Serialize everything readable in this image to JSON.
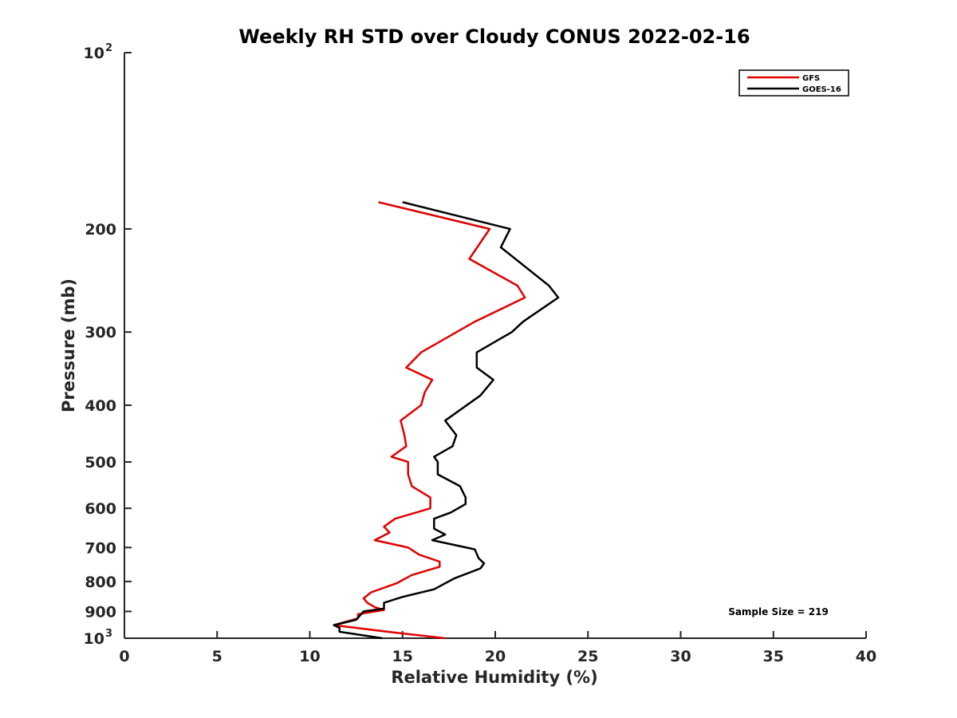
{
  "chart_data": {
    "type": "line",
    "title": "Weekly RH STD over Cloudy CONUS 2022-02-16",
    "xlabel": "Relative Humidity (%)",
    "ylabel": "Pressure (mb)",
    "xlim": [
      0,
      40
    ],
    "ylim": [
      100,
      1000
    ],
    "y_scale": "log",
    "y_inverted": true,
    "grid": false,
    "legend_position": "top-right",
    "x_ticks": [
      "0",
      "5",
      "10",
      "15",
      "20",
      "25",
      "30",
      "35",
      "40"
    ],
    "y_ticks": [
      {
        "value": 100,
        "label": "10",
        "sup": "2"
      },
      {
        "value": 200,
        "label": "200",
        "sup": ""
      },
      {
        "value": 300,
        "label": "300",
        "sup": ""
      },
      {
        "value": 400,
        "label": "400",
        "sup": ""
      },
      {
        "value": 500,
        "label": "500",
        "sup": ""
      },
      {
        "value": 600,
        "label": "600",
        "sup": ""
      },
      {
        "value": 700,
        "label": "700",
        "sup": ""
      },
      {
        "value": 800,
        "label": "800",
        "sup": ""
      },
      {
        "value": 900,
        "label": "900",
        "sup": ""
      },
      {
        "value": 1000,
        "label": "10",
        "sup": "3"
      }
    ],
    "annotation": "Sample Size = 219",
    "series": [
      {
        "name": "GFS",
        "color": "#e00000",
        "points": [
          [
            13.7,
            180
          ],
          [
            19.7,
            200
          ],
          [
            18.6,
            225
          ],
          [
            21.2,
            250
          ],
          [
            21.6,
            262
          ],
          [
            18.9,
            288
          ],
          [
            16.0,
            325
          ],
          [
            15.2,
            345
          ],
          [
            16.6,
            362
          ],
          [
            16.2,
            380
          ],
          [
            16.0,
            400
          ],
          [
            14.9,
            425
          ],
          [
            15.1,
            450
          ],
          [
            15.2,
            470
          ],
          [
            14.4,
            490
          ],
          [
            15.3,
            500
          ],
          [
            15.3,
            525
          ],
          [
            15.5,
            550
          ],
          [
            16.5,
            575
          ],
          [
            16.5,
            600
          ],
          [
            14.6,
            625
          ],
          [
            14.0,
            645
          ],
          [
            14.3,
            660
          ],
          [
            13.5,
            680
          ],
          [
            15.3,
            700
          ],
          [
            15.9,
            720
          ],
          [
            17.0,
            740
          ],
          [
            17.0,
            755
          ],
          [
            15.5,
            780
          ],
          [
            14.7,
            805
          ],
          [
            13.3,
            835
          ],
          [
            12.9,
            855
          ],
          [
            13.1,
            870
          ],
          [
            13.5,
            885
          ],
          [
            14.0,
            895
          ],
          [
            12.6,
            910
          ],
          [
            12.6,
            925
          ],
          [
            11.3,
            950
          ],
          [
            14.2,
            975
          ],
          [
            17.3,
            1000
          ]
        ]
      },
      {
        "name": "GOES-16",
        "color": "#000000",
        "points": [
          [
            15.0,
            180
          ],
          [
            20.8,
            200
          ],
          [
            20.3,
            215
          ],
          [
            22.9,
            250
          ],
          [
            23.4,
            262
          ],
          [
            21.5,
            288
          ],
          [
            20.9,
            300
          ],
          [
            19.0,
            325
          ],
          [
            19.0,
            345
          ],
          [
            19.9,
            362
          ],
          [
            19.2,
            385
          ],
          [
            17.3,
            425
          ],
          [
            17.9,
            450
          ],
          [
            17.7,
            470
          ],
          [
            16.7,
            490
          ],
          [
            16.9,
            500
          ],
          [
            16.9,
            525
          ],
          [
            18.1,
            550
          ],
          [
            18.4,
            575
          ],
          [
            18.4,
            590
          ],
          [
            17.6,
            610
          ],
          [
            16.7,
            625
          ],
          [
            16.7,
            650
          ],
          [
            17.3,
            665
          ],
          [
            16.6,
            680
          ],
          [
            18.9,
            705
          ],
          [
            19.1,
            730
          ],
          [
            19.4,
            745
          ],
          [
            19.2,
            760
          ],
          [
            17.8,
            790
          ],
          [
            16.7,
            825
          ],
          [
            15.0,
            850
          ],
          [
            14.0,
            870
          ],
          [
            14.0,
            890
          ],
          [
            12.9,
            900
          ],
          [
            12.5,
            930
          ],
          [
            11.3,
            950
          ],
          [
            11.6,
            960
          ],
          [
            11.6,
            975
          ],
          [
            13.9,
            1000
          ]
        ]
      }
    ]
  }
}
